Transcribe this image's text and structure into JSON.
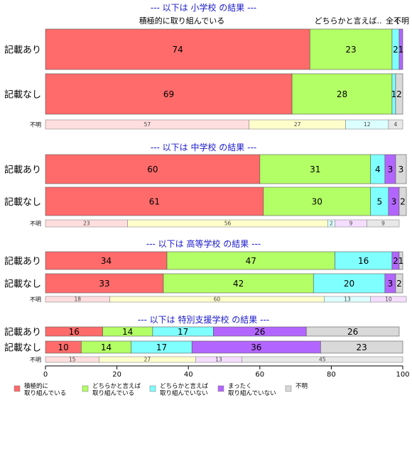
{
  "chart_data": {
    "type": "bar",
    "orientation": "horizontal",
    "stacked": true,
    "xlim": [
      0,
      100
    ],
    "x_ticks": [
      "0",
      "20",
      "40",
      "60",
      "80",
      "100"
    ],
    "top_annotations": [
      "積極的に取り組んでいる",
      "どちらかと言えば..",
      "全く",
      "不明"
    ],
    "legend": {
      "placement": "bottom",
      "items": [
        {
          "label": [
            "積極的に",
            "取り組んでいる"
          ],
          "color": "#ff6b6b"
        },
        {
          "label": [
            "どちらかと言えば",
            "取り組んでいる"
          ],
          "color": "#b3ff66"
        },
        {
          "label": [
            "どちらかと言えば",
            "取り組んでいない"
          ],
          "color": "#80ffff"
        },
        {
          "label": [
            "まったく",
            "取り組んでいない"
          ],
          "color": "#b366ff"
        },
        {
          "label": [
            "不明"
          ],
          "color": "#d9d9d9"
        }
      ]
    },
    "panels": [
      {
        "title": "--- 以下は 小学校 の結果 ---",
        "rows": [
          {
            "label": "記載あり",
            "values": [
              74,
              23,
              2,
              1,
              0
            ],
            "labels": [
              "74",
              "23",
              "2",
              "1",
              ""
            ]
          },
          {
            "label": "記載なし",
            "values": [
              69,
              28,
              1,
              0,
              2
            ],
            "labels": [
              "69",
              "28",
              "1",
              "",
              "2"
            ]
          }
        ],
        "unknown": {
          "label": "不明",
          "values": [
            57,
            27,
            12,
            0,
            4
          ],
          "labels": [
            "57",
            "27",
            "12",
            "",
            "4"
          ]
        }
      },
      {
        "title": "--- 以下は 中学校 の結果 ---",
        "rows": [
          {
            "label": "記載あり",
            "values": [
              60,
              31,
              4,
              3,
              3
            ],
            "labels": [
              "60",
              "31",
              "4",
              "3",
              "3"
            ]
          },
          {
            "label": "記載なし",
            "values": [
              61,
              30,
              5,
              3,
              2
            ],
            "labels": [
              "61",
              "30",
              "5",
              "3",
              "2"
            ]
          }
        ],
        "unknown": {
          "label": "不明",
          "values": [
            23,
            56,
            2,
            9,
            9
          ],
          "labels": [
            "23",
            "56",
            "2",
            "9",
            "9"
          ]
        }
      },
      {
        "title": "--- 以下は 高等学校 の結果 ---",
        "rows": [
          {
            "label": "記載あり",
            "values": [
              34,
              47,
              16,
              2,
              1
            ],
            "labels": [
              "34",
              "47",
              "16",
              "2",
              "1"
            ]
          },
          {
            "label": "記載なし",
            "values": [
              33,
              42,
              20,
              3,
              2
            ],
            "labels": [
              "33",
              "42",
              "20",
              "3",
              "2"
            ]
          }
        ],
        "unknown": {
          "label": "不明",
          "values": [
            18,
            60,
            13,
            10,
            0
          ],
          "labels": [
            "18",
            "60",
            "13",
            "10",
            ""
          ]
        }
      },
      {
        "title": "--- 以下は 特別支援学校 の結果 ---",
        "rows": [
          {
            "label": "記載あり",
            "values": [
              16,
              14,
              17,
              26,
              26
            ],
            "labels": [
              "16",
              "14",
              "17",
              "26",
              "26"
            ]
          },
          {
            "label": "記載なし",
            "values": [
              10,
              14,
              17,
              36,
              23
            ],
            "labels": [
              "10",
              "14",
              "17",
              "36",
              "23"
            ]
          }
        ],
        "unknown": {
          "label": "不明",
          "values": [
            15,
            27,
            0,
            13,
            45
          ],
          "labels": [
            "15",
            "27",
            "",
            "13",
            "45"
          ]
        }
      }
    ],
    "unknown_row_colors": [
      "#ffdede",
      "#ffffcc",
      "#dcffff",
      "#f5ddff",
      "#e8e8e8"
    ]
  }
}
